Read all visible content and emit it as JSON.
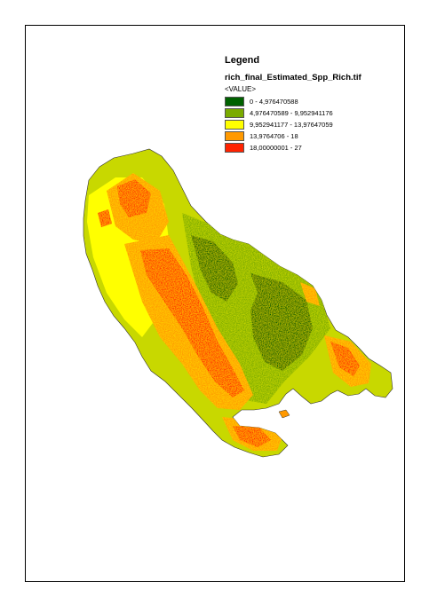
{
  "legend": {
    "title": "Legend",
    "layer_name": "rich_final_Estimated_Spp_Rich.tif",
    "field": "<VALUE>",
    "classes": [
      {
        "label": "0 - 4,976470588",
        "color": "#006100"
      },
      {
        "label": "4,976470589 - 9,952941176",
        "color": "#7aab00"
      },
      {
        "label": "9,952941177 - 13,97647059",
        "color": "#ffff00"
      },
      {
        "label": "13,9764706 - 18",
        "color": "#ff9900"
      },
      {
        "label": "18,00000001 - 27",
        "color": "#ff2200"
      }
    ]
  }
}
